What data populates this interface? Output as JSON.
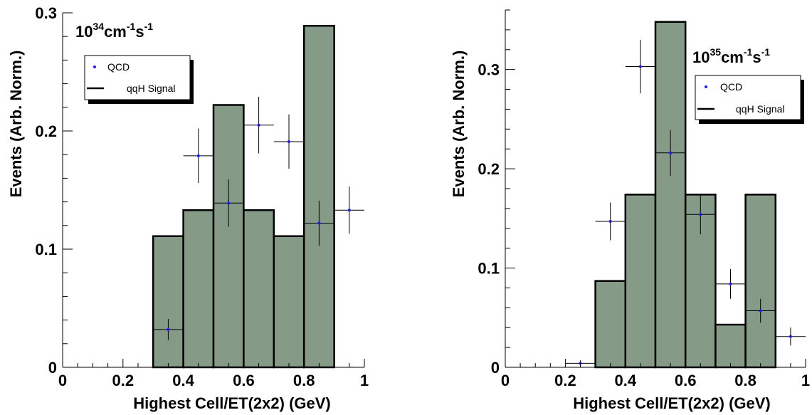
{
  "chart_data": [
    {
      "type": "bar",
      "panel": "left",
      "xlabel": "Highest Cell/ET(2x2) (GeV)",
      "ylabel": "Events (Arb. Norm.)",
      "xlim": [
        0,
        1
      ],
      "ylim": [
        0,
        0.3
      ],
      "x_ticks": [
        0,
        0.2,
        0.4,
        0.6,
        0.8,
        1
      ],
      "x_tick_labels": [
        "0",
        "0.2",
        "0.4",
        "0.6",
        "0.8",
        "1"
      ],
      "y_ticks": [
        0,
        0.1,
        0.2,
        0.3
      ],
      "y_tick_labels": [
        "0",
        "0.1",
        "0.2",
        "0.3"
      ],
      "annotation": {
        "base": "10",
        "exp1": "34",
        "unit1": "cm",
        "exp2": "-1",
        "unit2": "s",
        "exp3": "-1"
      },
      "legend": {
        "placement": "top-left",
        "entries": [
          "QCD",
          "qqH Signal"
        ]
      },
      "signal_hist": {
        "name": "qqH Signal",
        "bin_edges": [
          0,
          0.1,
          0.2,
          0.3,
          0.4,
          0.5,
          0.6,
          0.7,
          0.8,
          0.9,
          1.0
        ],
        "values": [
          0,
          0,
          0,
          0.111,
          0.133,
          0.222,
          0.133,
          0.111,
          0.289,
          0
        ]
      },
      "qcd_points": {
        "name": "QCD",
        "x": [
          0.35,
          0.45,
          0.55,
          0.65,
          0.75,
          0.85,
          0.95
        ],
        "y": [
          0.032,
          0.179,
          0.139,
          0.205,
          0.191,
          0.122,
          0.133
        ],
        "xerr": 0.05,
        "yerr": [
          0.009,
          0.023,
          0.02,
          0.024,
          0.023,
          0.019,
          0.02
        ]
      }
    },
    {
      "type": "bar",
      "panel": "right",
      "xlabel": "Highest Cell/ET(2x2) (GeV)",
      "ylabel": "Events (Arb. Norm.)",
      "xlim": [
        0,
        1
      ],
      "ylim": [
        0,
        0.36
      ],
      "x_ticks": [
        0,
        0.2,
        0.4,
        0.6,
        0.8,
        1
      ],
      "x_tick_labels": [
        "0",
        "0.2",
        "0.4",
        "0.6",
        "0.8",
        "1"
      ],
      "y_ticks": [
        0,
        0.1,
        0.2,
        0.3
      ],
      "y_tick_labels": [
        "0",
        "0.1",
        "0.2",
        "0.3"
      ],
      "annotation": {
        "base": "10",
        "exp1": "35",
        "unit1": "cm",
        "exp2": "-1",
        "unit2": "s",
        "exp3": "-1"
      },
      "legend": {
        "placement": "top-right",
        "entries": [
          "QCD",
          "qqH Signal"
        ]
      },
      "signal_hist": {
        "name": "qqH Signal",
        "bin_edges": [
          0,
          0.1,
          0.2,
          0.3,
          0.4,
          0.5,
          0.6,
          0.7,
          0.8,
          0.9,
          1.0
        ],
        "values": [
          0,
          0,
          0,
          0.087,
          0.174,
          0.348,
          0.174,
          0.043,
          0.174,
          0
        ]
      },
      "qcd_points": {
        "name": "QCD",
        "x": [
          0.25,
          0.35,
          0.45,
          0.55,
          0.65,
          0.75,
          0.85,
          0.95
        ],
        "y": [
          0.004,
          0.147,
          0.303,
          0.216,
          0.154,
          0.084,
          0.057,
          0.031
        ],
        "xerr": 0.05,
        "yerr": [
          0.003,
          0.019,
          0.027,
          0.023,
          0.02,
          0.015,
          0.012,
          0.009
        ]
      }
    }
  ]
}
